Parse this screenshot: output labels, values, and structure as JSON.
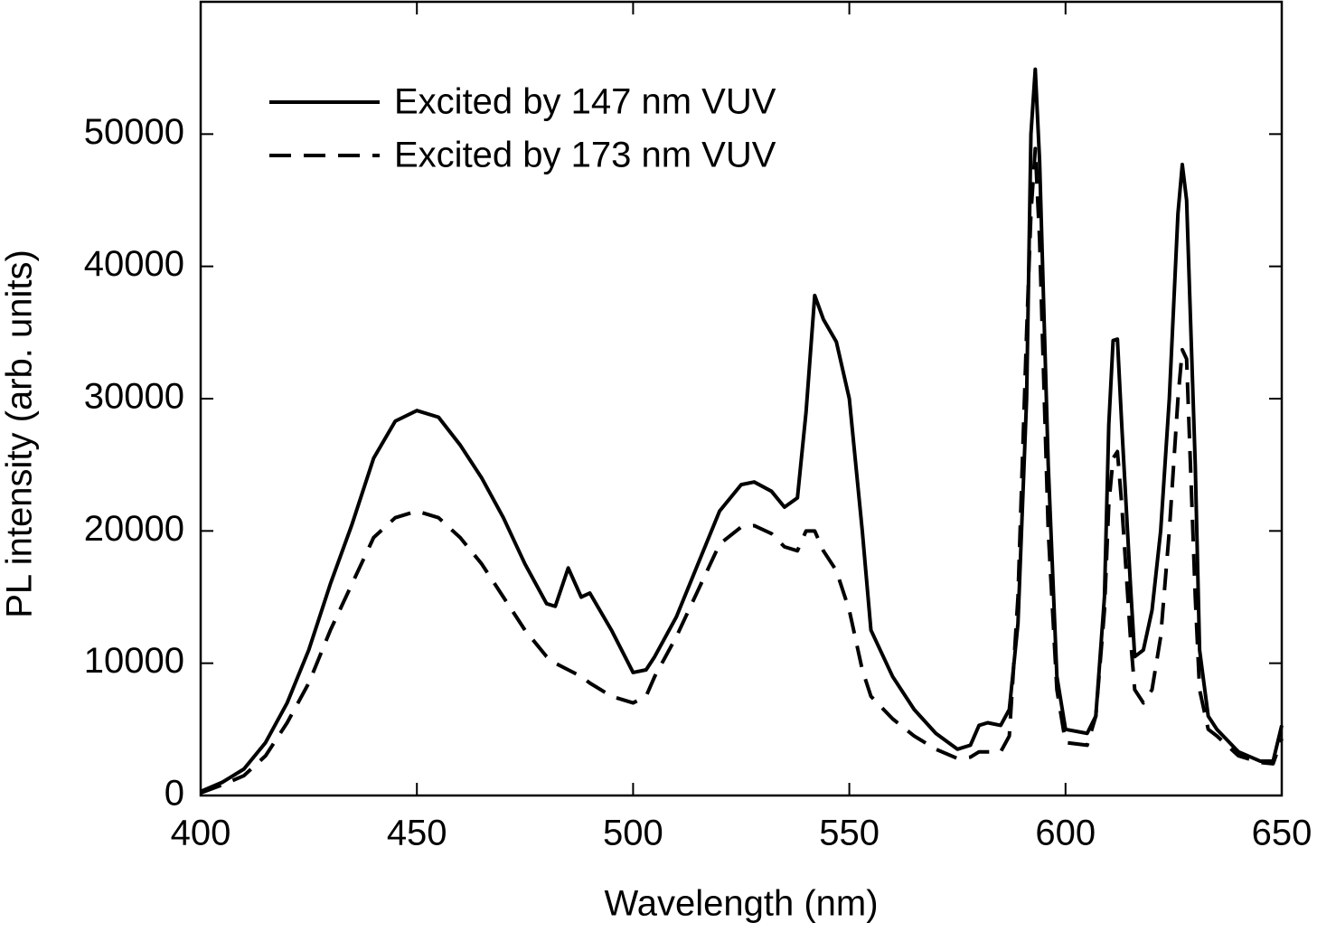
{
  "chart_data": {
    "type": "line",
    "x_label": "Wavelength (nm)",
    "y_label": "PL intensity (arb. units)",
    "x": [
      400,
      405,
      410,
      415,
      420,
      425,
      430,
      435,
      440,
      445,
      450,
      455,
      460,
      465,
      470,
      475,
      480,
      482,
      485,
      488,
      490,
      495,
      500,
      503,
      505,
      510,
      515,
      520,
      525,
      528,
      532,
      535,
      538,
      540,
      542,
      544,
      547,
      550,
      553,
      555,
      560,
      565,
      570,
      575,
      578,
      580,
      582,
      585,
      587,
      589,
      591,
      592,
      593,
      594,
      596,
      598,
      600,
      605,
      607,
      609,
      610,
      611,
      612,
      613,
      615,
      616,
      618,
      620,
      622,
      624,
      626,
      627,
      628,
      630,
      631,
      633,
      635,
      640,
      645,
      648,
      650
    ],
    "series": [
      {
        "name": "Excited by 147 nm VUV",
        "color": "#000000",
        "dash": "solid",
        "values": [
          300,
          1000,
          2000,
          4000,
          7000,
          11000,
          16000,
          20500,
          25500,
          28300,
          29100,
          28600,
          26500,
          24000,
          21000,
          17500,
          14500,
          14300,
          17200,
          15000,
          15300,
          12500,
          9300,
          9500,
          10500,
          13500,
          17500,
          21500,
          23500,
          23700,
          23000,
          21800,
          22500,
          29000,
          37800,
          36000,
          34300,
          30000,
          20000,
          12500,
          9000,
          6500,
          4700,
          3500,
          3800,
          5300,
          5500,
          5300,
          6500,
          13000,
          30000,
          50000,
          54900,
          48000,
          25000,
          9000,
          5000,
          4700,
          6000,
          15000,
          28000,
          34400,
          34500,
          28000,
          16000,
          10500,
          11000,
          14000,
          20000,
          30000,
          44000,
          47700,
          45000,
          25000,
          11000,
          6000,
          5000,
          3300,
          2600,
          2600,
          5300
        ]
      },
      {
        "name": "Excited by 173 nm VUV",
        "color": "#000000",
        "dash": "dashed",
        "values": [
          200,
          800,
          1500,
          3000,
          5500,
          8500,
          12500,
          16000,
          19500,
          21000,
          21500,
          21000,
          19500,
          17500,
          15000,
          12500,
          10500,
          10000,
          9500,
          9000,
          8500,
          7500,
          7000,
          7500,
          9000,
          12000,
          15500,
          19000,
          20300,
          20400,
          19800,
          18800,
          18500,
          20000,
          20000,
          18500,
          17000,
          14000,
          9500,
          7500,
          5800,
          4500,
          3500,
          2800,
          2900,
          3300,
          3300,
          3300,
          4500,
          15000,
          35000,
          44000,
          48900,
          42000,
          20000,
          8000,
          4000,
          3800,
          6000,
          14000,
          22000,
          25500,
          26000,
          22000,
          12000,
          8000,
          7000,
          8000,
          12000,
          20000,
          30000,
          33700,
          33000,
          15000,
          8000,
          5000,
          4500,
          3000,
          2500,
          2400,
          4300
        ]
      }
    ],
    "xlim": [
      400,
      650
    ],
    "xticks": [
      400,
      450,
      500,
      550,
      600,
      650
    ],
    "ylim": [
      0,
      60000
    ],
    "yticks": [
      0,
      10000,
      20000,
      30000,
      40000,
      50000
    ],
    "legend": "upper left",
    "grid": false
  }
}
